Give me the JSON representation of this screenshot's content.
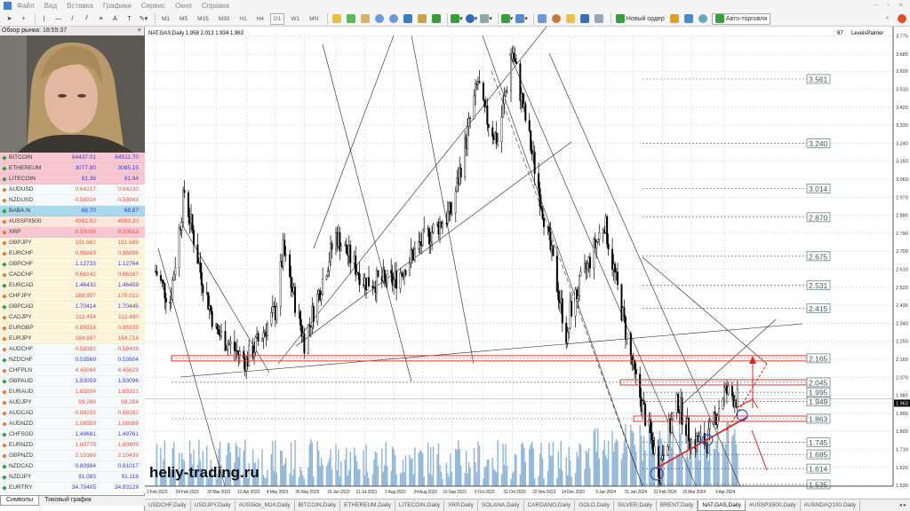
{
  "menu": [
    "Файл",
    "Вид",
    "Вставка",
    "Графики",
    "Сервис",
    "Окно",
    "Справка"
  ],
  "toolbar": {
    "timeframes": [
      "M1",
      "M5",
      "M15",
      "M30",
      "H1",
      "H4",
      "D1",
      "W1",
      "MN"
    ],
    "active_timeframe": "D1",
    "new_order": "Новый ордер",
    "auto_trading": "Авто-торговля"
  },
  "market_watch": {
    "title": "Обзор рынка: 18:55:37",
    "tabs": [
      "Символы",
      "Тиковый график"
    ],
    "rows": [
      {
        "symbol": "BITCOIN",
        "bid": "64437.01",
        "ask": "64511.70",
        "dir": "up",
        "bg": "#f8c8d2"
      },
      {
        "symbol": "ETHEREUM",
        "bid": "3077.80",
        "ask": "3085.15",
        "dir": "up",
        "bg": "#f8c8d2"
      },
      {
        "symbol": "LITECOIN",
        "bid": "81.38",
        "ask": "81.94",
        "dir": "up",
        "bg": "#f8c8d2"
      },
      {
        "symbol": "AUDUSD",
        "bid": "0.64217",
        "ask": "0.64230",
        "dir": "down",
        "bg": "#f6fafa"
      },
      {
        "symbol": "NZDUSD",
        "bid": "0.58924",
        "ask": "0.58943",
        "dir": "down",
        "bg": "#f6fafa"
      },
      {
        "symbol": "BABA.N",
        "bid": "68.70",
        "ask": "68.87",
        "dir": "up",
        "bg": "#a9d8ea"
      },
      {
        "symbol": "#USSPX500",
        "bid": "4992.50",
        "ask": "4993.20",
        "dir": "down",
        "bg": "#fde6dc"
      },
      {
        "symbol": "XRP",
        "bid": "0.50036",
        "ask": "0.50513",
        "dir": "down",
        "bg": "#f8c8d2"
      },
      {
        "symbol": "GBPJPY",
        "bid": "191.662",
        "ask": "191.689",
        "dir": "down",
        "bg": "#fdf5dc"
      },
      {
        "symbol": "EURCHF",
        "bid": "0.96869",
        "ask": "0.96896",
        "dir": "down",
        "bg": "#fdf5dc"
      },
      {
        "symbol": "GBPCHF",
        "bid": "1.12733",
        "ask": "1.12764",
        "dir": "up",
        "bg": "#fdf5dc"
      },
      {
        "symbol": "CADCHF",
        "bid": "0.66142",
        "ask": "0.66167",
        "dir": "down",
        "bg": "#fdf5dc"
      },
      {
        "symbol": "EURCAD",
        "bid": "1.46432",
        "ask": "1.46459",
        "dir": "up",
        "bg": "#fdf5dc"
      },
      {
        "symbol": "CHFJPY",
        "bid": "169.997",
        "ask": "170.012",
        "dir": "down",
        "bg": "#fdf5dc"
      },
      {
        "symbol": "GBPCAD",
        "bid": "1.70414",
        "ask": "1.70445",
        "dir": "up",
        "bg": "#fdf5dc"
      },
      {
        "symbol": "CADJPY",
        "bid": "112.454",
        "ask": "112.480",
        "dir": "down",
        "bg": "#fdf5dc"
      },
      {
        "symbol": "EURGBP",
        "bid": "0.85918",
        "ask": "0.85935",
        "dir": "down",
        "bg": "#fdf5dc"
      },
      {
        "symbol": "EURJPY",
        "bid": "164.697",
        "ask": "164.714",
        "dir": "down",
        "bg": "#fdf5dc"
      },
      {
        "symbol": "AUDCHF",
        "bid": "0.58382",
        "ask": "0.58408",
        "dir": "down",
        "bg": "#f6fafa"
      },
      {
        "symbol": "NZDCHF",
        "bid": "0.53569",
        "ask": "0.53604",
        "dir": "up",
        "bg": "#f6fafa"
      },
      {
        "symbol": "CHFPLN",
        "bid": "4.45084",
        "ask": "4.45629",
        "dir": "down",
        "bg": "#f6fafa"
      },
      {
        "symbol": "GBPAUD",
        "bid": "1.93059",
        "ask": "1.93096",
        "dir": "up",
        "bg": "#f6fafa"
      },
      {
        "symbol": "EURAUD",
        "bid": "1.65894",
        "ask": "1.65921",
        "dir": "down",
        "bg": "#f6fafa"
      },
      {
        "symbol": "AUDJPY",
        "bid": "99.266",
        "ask": "99.284",
        "dir": "down",
        "bg": "#f6fafa"
      },
      {
        "symbol": "AUDCAD",
        "bid": "0.88255",
        "ask": "0.88282",
        "dir": "down",
        "bg": "#f6fafa"
      },
      {
        "symbol": "AUDNZD",
        "bid": "1.08959",
        "ask": "1.08988",
        "dir": "down",
        "bg": "#f6fafa"
      },
      {
        "symbol": "CHFSGD",
        "bid": "1.49681",
        "ask": "1.49761",
        "dir": "up",
        "bg": "#f6fafa"
      },
      {
        "symbol": "EURNZD",
        "bid": "1.80779",
        "ask": "1.80809",
        "dir": "down",
        "bg": "#f6fafa"
      },
      {
        "symbol": "GBPNZD",
        "bid": "2.10369",
        "ask": "2.10439",
        "dir": "down",
        "bg": "#f6fafa"
      },
      {
        "symbol": "NZDCAD",
        "bid": "0.80984",
        "ask": "0.81017",
        "dir": "up",
        "bg": "#f6fafa"
      },
      {
        "symbol": "NZDJPY",
        "bid": "91.083",
        "ask": "91.118",
        "dir": "up",
        "bg": "#f6fafa"
      },
      {
        "symbol": "EURTRY",
        "bid": "34.79405",
        "ask": "34.83129",
        "dir": "up",
        "bg": "#f6fafa"
      }
    ],
    "colors": {
      "up": "#2f9e44",
      "down": "#e07a3a",
      "up_price": "#3a3ad0",
      "down_price": "#e0524a"
    }
  },
  "chart": {
    "header": "NAT.GAS,Daily  1.958 2.013 1.934 1.963",
    "indicator_value": "87",
    "indicator_name": "LevelsPainter",
    "watermark": "heliy-trading.ru",
    "current_price": "1.963",
    "tabs": [
      "USDCHF,Daily",
      "USDJPY,Daily",
      "#USSidx_M24,Daily",
      "BITCOIN,Daily",
      "ETHEREUM,Daily",
      "LITECOIN,Daily",
      "XRP,Daily",
      "SOLANA,Daily",
      "CARDANO,Daily",
      "GOLD,Daily",
      "SILVER,Daily",
      "BRENT,Daily",
      "NAT.GAS,Daily",
      "#USSPX500,Daily",
      "#USNDAQ100,Daily"
    ],
    "active_tab": "NAT.GAS,Daily"
  },
  "chart_data": {
    "type": "candlestick",
    "symbol": "NAT.GAS",
    "timeframe": "Daily",
    "ohlc_last": {
      "open": 1.958,
      "high": 2.013,
      "low": 1.934,
      "close": 1.963
    },
    "y_ticks": [
      "3.775",
      "3.685",
      "3.600",
      "3.510",
      "3.420",
      "3.330",
      "3.240",
      "3.150",
      "3.060",
      "2.970",
      "2.880",
      "2.790",
      "2.700",
      "2.610",
      "2.520",
      "2.430",
      "2.340",
      "2.250",
      "2.160",
      "2.070",
      "1.980",
      "1.890",
      "1.800",
      "1.710",
      "1.620",
      "1.530"
    ],
    "x_ticks": [
      "2 Feb 2023",
      "24 Feb 2023",
      "20 Mar 2023",
      "12 Apr 2023",
      "4 May 2023",
      "26 May 2023",
      "19 Jun 2023",
      "11 Jul 2023",
      "2 Aug 2023",
      "24 Aug 2023",
      "15 Sep 2023",
      "9 Oct 2023",
      "31 Oct 2023",
      "22 Nov 2023",
      "14 Dec 2023",
      "9 Jan 2024",
      "31 Jan 2024",
      "22 Feb 2024",
      "15 Mar 2024",
      "9 Apr 2024"
    ],
    "price_path": [
      [
        "2 Feb 2023",
        2.6
      ],
      [
        "13 Feb 2023",
        2.45
      ],
      [
        "24 Feb 2023",
        3.0
      ],
      [
        "8 Mar 2023",
        2.6
      ],
      [
        "20 Mar 2023",
        2.3
      ],
      [
        "12 Apr 2023",
        2.15
      ],
      [
        "4 May 2023",
        2.4
      ],
      [
        "10 May 2023",
        2.7
      ],
      [
        "26 May 2023",
        2.25
      ],
      [
        "19 Jun 2023",
        2.78
      ],
      [
        "11 Jul 2023",
        2.55
      ],
      [
        "2 Aug 2023",
        2.55
      ],
      [
        "24 Aug 2023",
        2.75
      ],
      [
        "15 Sep 2023",
        2.9
      ],
      [
        "5 Oct 2023",
        3.55
      ],
      [
        "9 Oct 2023",
        3.4
      ],
      [
        "20 Oct 2023",
        3.25
      ],
      [
        "31 Oct 2023",
        3.7
      ],
      [
        "22 Nov 2023",
        2.95
      ],
      [
        "12 Dec 2023",
        2.25
      ],
      [
        "14 Dec 2023",
        2.4
      ],
      [
        "9 Jan 2024",
        2.85
      ],
      [
        "31 Jan 2024",
        2.1
      ],
      [
        "20 Feb 2024",
        1.6
      ],
      [
        "22 Feb 2024",
        1.7
      ],
      [
        "5 Mar 2024",
        1.95
      ],
      [
        "15 Mar 2024",
        1.75
      ],
      [
        "27 Mar 2024",
        1.75
      ],
      [
        "9 Apr 2024",
        2.0
      ],
      [
        "19 Apr 2024",
        1.963
      ]
    ],
    "levels": [
      {
        "price": 3.561,
        "label": "3.561"
      },
      {
        "price": 3.24,
        "label": "3.240"
      },
      {
        "price": 3.014,
        "label": "3.014"
      },
      {
        "price": 2.87,
        "label": "2.870"
      },
      {
        "price": 2.675,
        "label": "2.675"
      },
      {
        "price": 2.531,
        "label": "2.531"
      },
      {
        "price": 2.415,
        "label": "2.415"
      },
      {
        "price": 2.165,
        "label": "2.165",
        "zone": true
      },
      {
        "price": 2.045,
        "label": "2.045",
        "zone": true
      },
      {
        "price": 1.995,
        "label": "1.995"
      },
      {
        "price": 1.949,
        "label": "1.949"
      },
      {
        "price": 1.863,
        "label": "1.863",
        "zone": true
      },
      {
        "price": 1.745,
        "label": "1.745"
      },
      {
        "price": 1.685,
        "label": "1.685"
      },
      {
        "price": 1.614,
        "label": "1.614"
      },
      {
        "price": 1.535,
        "label": "1.535"
      }
    ],
    "colors": {
      "candles": "#000000",
      "volume": "#8db4d9",
      "zone": "#e03a2a",
      "level_box": "#5a7a7a",
      "arrows": "#e02020"
    },
    "grid": true
  }
}
